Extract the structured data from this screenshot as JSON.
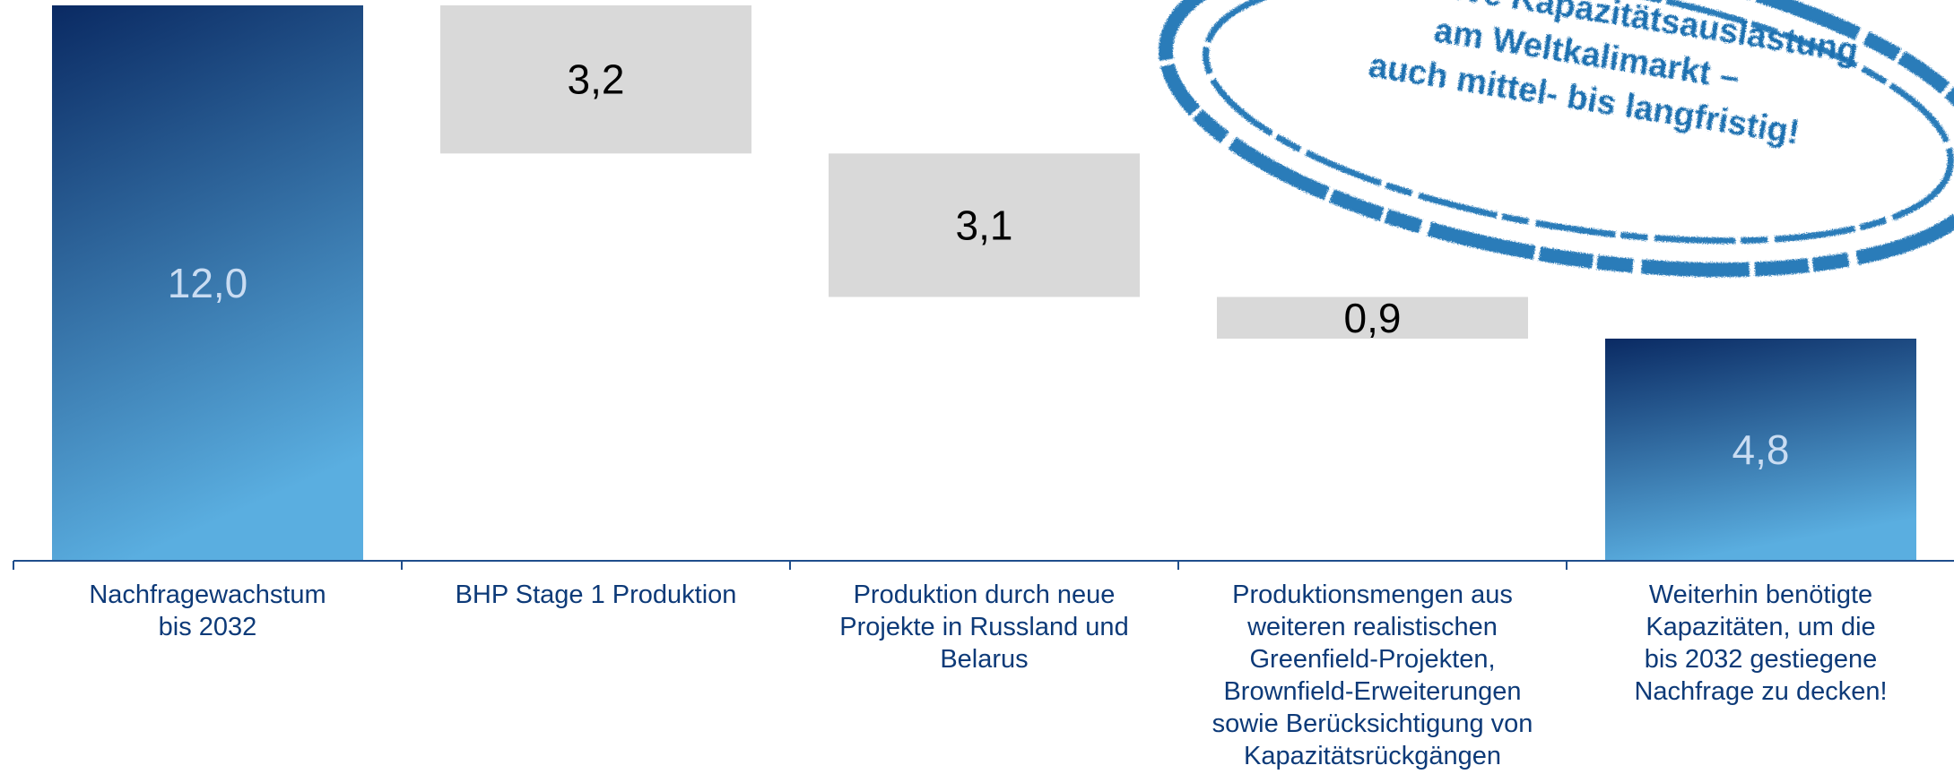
{
  "chart_data": {
    "type": "bar",
    "subtype": "waterfall",
    "categories": [
      "Nachfragewachstum bis 2032",
      "BHP Stage 1 Produktion",
      "Produktion durch neue Projekte in Russland und Belarus",
      "Produktionsmengen aus weiteren realistischen Greenfield-Projekten, Brownfield-Erweiterungen sowie Berücksichtigung von Kapazitätsrückgängen",
      "Weiterhin benötigte Kapazitäten, um die bis 2032 gestiegene Nachfrage zu decken!"
    ],
    "category_lines": [
      [
        "Nachfragewachstum",
        "bis 2032"
      ],
      [
        "BHP Stage 1 Produktion"
      ],
      [
        "Produktion durch neue",
        "Projekte in Russland und",
        "Belarus"
      ],
      [
        "Produktionsmengen aus",
        "weiteren realistischen",
        "Greenfield-Projekten,",
        "Brownfield-Erweiterungen",
        "sowie Berücksichtigung von",
        "Kapazitätsrückgängen"
      ],
      [
        "Weiterhin benötigte",
        "Kapazitäten, um die",
        "bis 2032 gestiegene",
        "Nachfrage zu decken!"
      ]
    ],
    "values": [
      12.0,
      -3.2,
      -3.1,
      -0.9,
      4.8
    ],
    "value_labels": [
      "12,0",
      "3,2",
      "3,1",
      "0,9",
      "4,8"
    ],
    "bar_kinds": [
      "total",
      "decrease",
      "decrease",
      "decrease",
      "total"
    ],
    "ylim": [
      0,
      12
    ],
    "colors": {
      "total_top": "#0a2a63",
      "total_bottom": "#5aaee0",
      "step_fill": "#d9d9d9",
      "axis": "#1f4e8c",
      "category_text": "#0d3a78",
      "total_label": "#c9dcf2",
      "step_label": "#000000",
      "stamp": "#2b7bb9"
    },
    "grid": false,
    "legend": "none"
  },
  "stamp": {
    "lines": [
      "Attraktive Kapazitätsauslastung",
      "am Weltkalimarkt –",
      "auch mittel- bis langfristig!"
    ]
  }
}
